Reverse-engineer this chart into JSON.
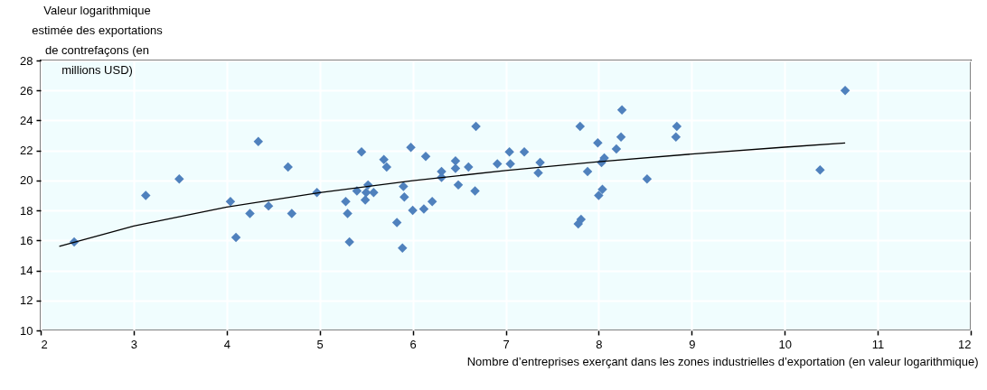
{
  "chart_data": {
    "type": "scatter",
    "xlabel": "Nombre d’entreprises exerçant dans les zones industrielles d’exportation (en valeur logarithmique)",
    "ylabel": "Valeur logarithmique estimée des exportations de contrefaçons (en millions USD)",
    "xlim": [
      2,
      12
    ],
    "xticks": [
      2,
      3,
      4,
      5,
      6,
      7,
      8,
      9,
      10,
      11,
      12
    ],
    "ylim": [
      10,
      28
    ],
    "yticks": [
      10,
      12,
      14,
      16,
      18,
      20,
      22,
      24,
      26,
      28
    ],
    "grid": true,
    "marker": "diamond",
    "series": [
      {
        "type": "scatter",
        "color": "#4f81bd",
        "x": [
          2.36,
          3.13,
          3.49,
          4.04,
          4.1,
          4.25,
          4.34,
          4.45,
          4.66,
          4.7,
          4.97,
          5.28,
          5.3,
          5.32,
          5.45,
          5.4,
          5.52,
          5.5,
          5.49,
          5.58,
          5.69,
          5.72,
          5.83,
          5.89,
          5.9,
          5.91,
          5.98,
          6.0,
          6.12,
          6.14,
          6.21,
          6.31,
          6.31,
          6.46,
          6.46,
          6.49,
          6.6,
          6.68,
          6.67,
          6.91,
          7.04,
          7.05,
          7.2,
          7.37,
          7.35,
          7.78,
          7.81,
          7.8,
          7.88,
          7.99,
          8.0,
          8.04,
          8.03,
          8.06,
          8.19,
          8.25,
          8.24,
          8.52,
          8.84,
          8.83,
          10.38,
          10.65
        ],
        "values": [
          15.9,
          19.0,
          20.1,
          18.6,
          16.2,
          17.8,
          22.6,
          18.3,
          20.9,
          17.8,
          19.2,
          18.6,
          17.8,
          15.9,
          21.9,
          19.3,
          19.7,
          19.2,
          18.7,
          19.2,
          21.4,
          20.9,
          17.2,
          15.5,
          19.6,
          18.9,
          22.2,
          18.0,
          18.1,
          21.6,
          18.6,
          20.6,
          20.2,
          21.3,
          20.8,
          19.7,
          20.9,
          23.6,
          19.3,
          21.1,
          21.9,
          21.1,
          21.9,
          21.2,
          20.5,
          17.1,
          17.4,
          23.6,
          20.6,
          22.5,
          19.0,
          19.4,
          21.2,
          21.5,
          22.1,
          24.7,
          22.9,
          20.1,
          23.6,
          22.9,
          20.7,
          26.0
        ]
      },
      {
        "type": "line",
        "color": "#000000",
        "marker": "none",
        "line_style": "solid",
        "x": [
          2.2,
          3,
          4,
          5,
          6,
          7,
          8,
          9,
          10,
          10.65
        ],
        "values": [
          15.6,
          16.96,
          18.22,
          19.19,
          19.99,
          20.66,
          21.25,
          21.76,
          22.22,
          22.5
        ]
      }
    ]
  }
}
